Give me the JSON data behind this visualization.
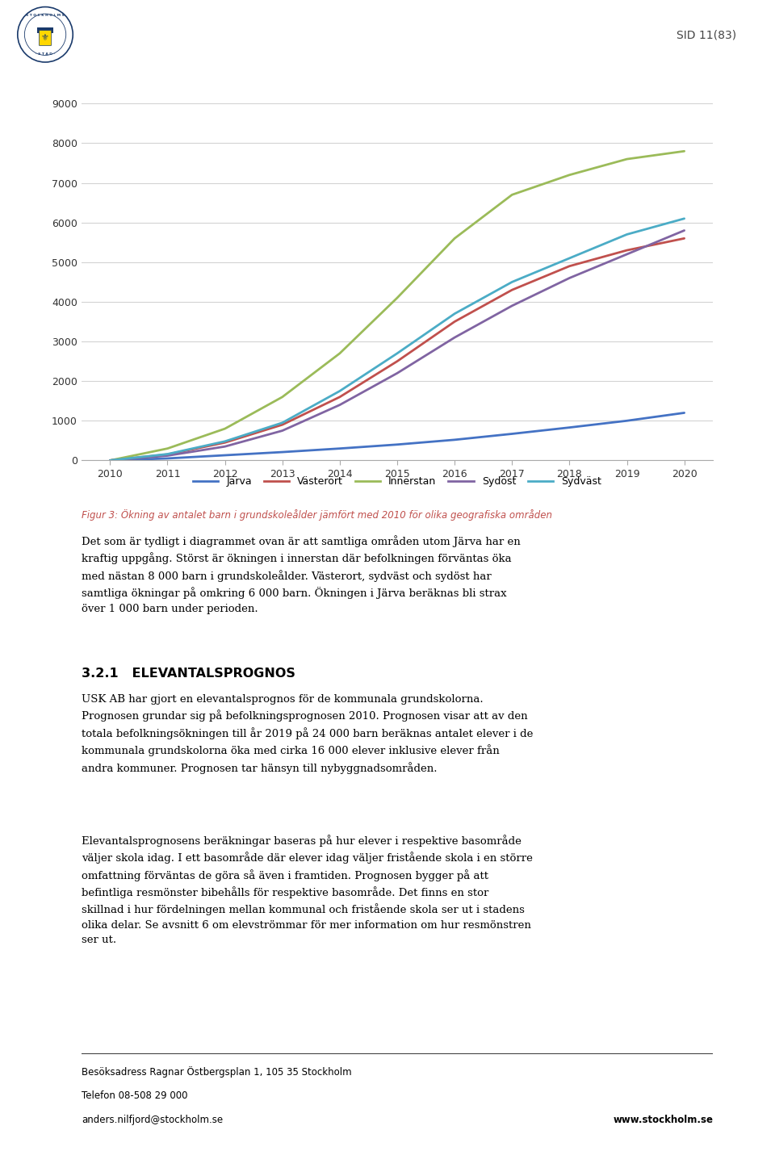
{
  "years": [
    2010,
    2011,
    2012,
    2013,
    2014,
    2015,
    2016,
    2017,
    2018,
    2019,
    2020
  ],
  "series": {
    "Järva": [
      0,
      50,
      130,
      210,
      300,
      400,
      520,
      670,
      830,
      1000,
      1200
    ],
    "Västerort": [
      0,
      150,
      450,
      900,
      1600,
      2500,
      3500,
      4300,
      4900,
      5300,
      5600
    ],
    "Innerstan": [
      0,
      300,
      800,
      1600,
      2700,
      4100,
      5600,
      6700,
      7200,
      7600,
      7800
    ],
    "Sydöst": [
      0,
      120,
      350,
      750,
      1400,
      2200,
      3100,
      3900,
      4600,
      5200,
      5800
    ],
    "Sydväst": [
      0,
      160,
      480,
      950,
      1750,
      2700,
      3700,
      4500,
      5100,
      5700,
      6100
    ]
  },
  "colors": {
    "Järva": "#4472C4",
    "Västerort": "#C0504D",
    "Innerstan": "#9BBB59",
    "Sydöst": "#8064A2",
    "Sydväst": "#4BACC6"
  },
  "ylim": [
    0,
    9000
  ],
  "yticks": [
    0,
    1000,
    2000,
    3000,
    4000,
    5000,
    6000,
    7000,
    8000,
    9000
  ],
  "figure_caption": "Figur 3: Ökning av antalet barn i grundskoleålder jämfört med 2010 för olika geografiska områden",
  "body_text_1": "Det som är tydligt i diagrammet ovan är att samtliga områden utom Järva har en krafttig uppgång. Störst är ökningen i innerstan där befolkningen förväntas öka med nästan 8 000 barn i grundskoleålder. Västerort, sydväst och sydöst har samtliga ökningar på omkring 6 000 barn. Ökningen i Järva beräknas bli strax över 1 000 barn under perioden.",
  "heading_2": "3.2.1   ELEVANTALSPROGNOS",
  "body_text_2": "USK AB har gjort en elevantalsprognos för de kommunala grundskolorna. Prognosen grundar sig på befolkningsprognosen 2010. Prognosen visar att av den totala befolkningsökningen till år 2019 på 24 000 barn beräknas antalet elever i de kommunala grundskolorna öka med cirka 16 000 elever inklusive elever från andra kommuner. Prognosen tar hänsyn till nybyggnadsområden.",
  "body_text_3": "Elevantalsprognosens beräkningar baseras på hur elever i respektive basområde väljer skola idag. I ett basområde där elever idag väljer fristående skola i en större omfattning förväntas de göra så även i framtiden. Prognosen bygger på att befintliga resmönster bibehålls för respektive basområde. Det finns en stor skillnad i hur fördelningen mellan kommunal och fristående skola ser ut i stadens olika delar. Se avsnitt 6 om elevströmmar för mer information om hur resmönstren ser ut.",
  "sid_text": "SID 11(83)",
  "background_color": "#FFFFFF",
  "line_width": 2.0,
  "grid_color": "#D3D3D3",
  "caption_color": "#C0504D",
  "footer_line1": "Besöksadress Ragnar Östbergsplan 1, 105 35 Stockholm",
  "footer_line2": "Telefon 08-508 29 000",
  "footer_line3_left": "anders.nilfjord@stockholm.se",
  "footer_line3_right": "www.stockholm.se"
}
